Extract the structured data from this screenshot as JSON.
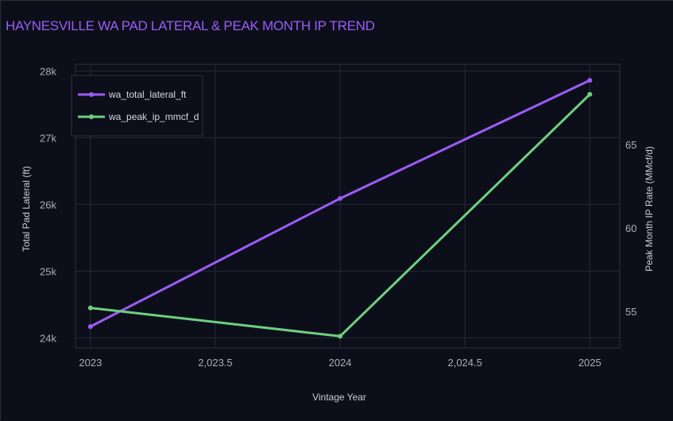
{
  "chart_data": {
    "type": "line",
    "title": "HAYNESVILLE WA PAD LATERAL & PEAK MONTH IP TREND",
    "xlabel": "Vintage Year",
    "ylabel_left": "Total Pad Lateral (ft)",
    "ylabel_right": "Peak Month IP Rate (MMcf/d)",
    "x": [
      2023,
      2024,
      2025
    ],
    "x_ticks": [
      2023,
      2023.5,
      2024,
      2024.5,
      2025
    ],
    "x_tick_labels": [
      "2023",
      "2,023.5",
      "2024",
      "2,024.5",
      "2025"
    ],
    "y_left_ticks": [
      24000,
      25000,
      26000,
      27000,
      28000
    ],
    "y_left_tick_labels": [
      "24k",
      "25k",
      "26k",
      "27k",
      "28k"
    ],
    "y_left_range": [
      23850,
      28100
    ],
    "y_right_ticks": [
      55,
      60,
      65
    ],
    "y_right_tick_labels": [
      "55",
      "60",
      "65"
    ],
    "y_right_range": [
      52.8,
      69.8
    ],
    "series": [
      {
        "name": "wa_total_lateral_ft",
        "axis": "left",
        "color": "#9b5cf6",
        "values": [
          24170,
          26090,
          27860
        ]
      },
      {
        "name": "wa_peak_ip_mmcf_d",
        "axis": "right",
        "color": "#6fcf7f",
        "values": [
          55.2,
          53.5,
          68.0
        ]
      }
    ],
    "grid": true,
    "legend_position": "top-left"
  }
}
